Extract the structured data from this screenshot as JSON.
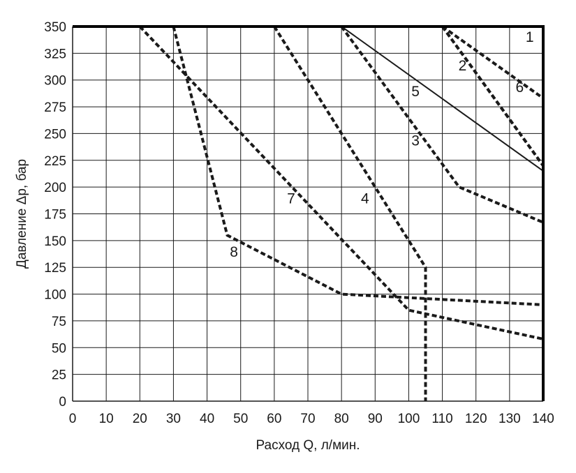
{
  "chart_data": {
    "type": "line",
    "title": "",
    "xlabel": "Расход Q, л/мин.",
    "ylabel": "Давление Δр, бар",
    "xlim": [
      0,
      140
    ],
    "ylim": [
      0,
      350
    ],
    "xticks": [
      "0",
      "10",
      "20",
      "30",
      "40",
      "50",
      "60",
      "70",
      "80",
      "90",
      "100",
      "110",
      "120",
      "130",
      "140"
    ],
    "yticks": [
      "0",
      "25",
      "50",
      "75",
      "100",
      "125",
      "150",
      "175",
      "200",
      "225",
      "250",
      "275",
      "300",
      "325",
      "350"
    ],
    "grid": true,
    "legend": "none",
    "series": [
      {
        "name": "1",
        "style": "dashed",
        "points": [
          [
            110,
            350
          ],
          [
            140,
            283
          ]
        ],
        "label_at": [
          136,
          341
        ]
      },
      {
        "name": "2",
        "style": "dashed",
        "points": [
          [
            110,
            350
          ],
          [
            140,
            220
          ]
        ],
        "label_at": [
          116,
          314
        ]
      },
      {
        "name": "3",
        "style": "dashed",
        "points": [
          [
            80,
            350
          ],
          [
            115,
            200
          ],
          [
            140,
            167
          ]
        ],
        "label_at": [
          102,
          244
        ]
      },
      {
        "name": "4",
        "style": "dashed",
        "points": [
          [
            60,
            350
          ],
          [
            105,
            125
          ],
          [
            105,
            0
          ]
        ],
        "label_at": [
          87,
          190
        ]
      },
      {
        "name": "5",
        "style": "solid",
        "points": [
          [
            80,
            350
          ],
          [
            140,
            215
          ]
        ],
        "label_at": [
          102,
          290
        ]
      },
      {
        "name": "6",
        "style": "dashed",
        "points": [
          [
            110,
            350
          ],
          [
            140,
            220
          ]
        ],
        "label_at": [
          133,
          294
        ]
      },
      {
        "name": "7",
        "style": "dashed",
        "points": [
          [
            20,
            350
          ],
          [
            100,
            85
          ],
          [
            140,
            58
          ]
        ],
        "label_at": [
          65,
          190
        ]
      },
      {
        "name": "8",
        "style": "dashed",
        "points": [
          [
            30,
            350
          ],
          [
            46,
            155
          ],
          [
            80,
            100
          ],
          [
            140,
            90
          ]
        ],
        "label_at": [
          48,
          140
        ]
      }
    ]
  }
}
